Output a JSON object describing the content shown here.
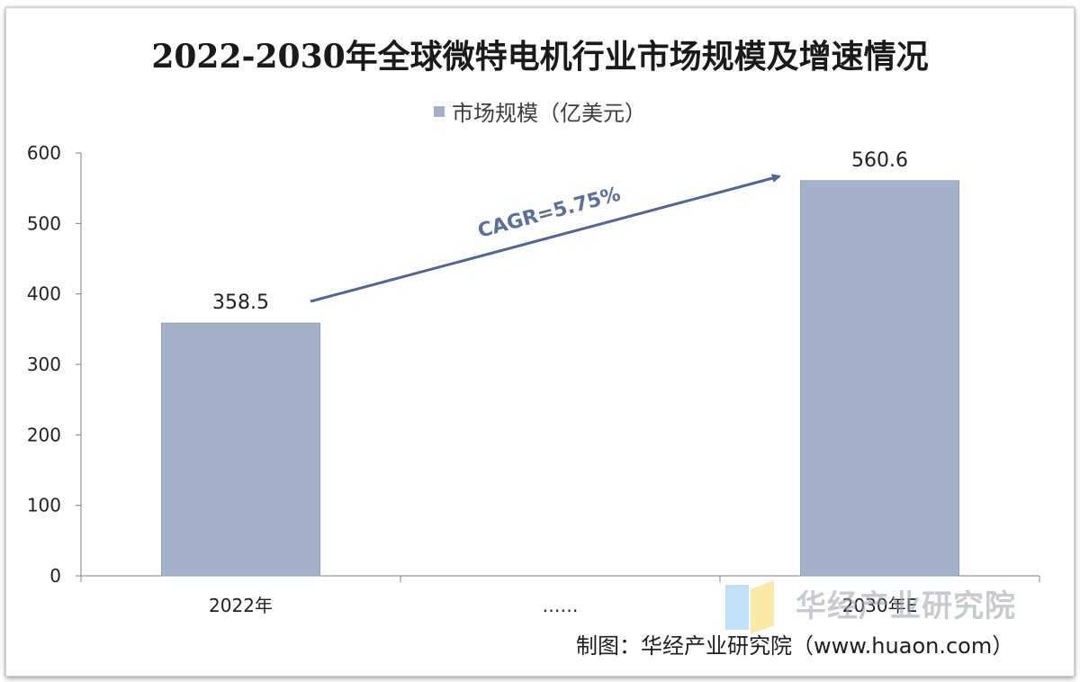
{
  "chart_data": {
    "type": "bar",
    "title": "2022-2030年全球微特电机行业市场规模及增速情况",
    "categories": [
      "2022年",
      "……",
      "2030年E"
    ],
    "series": [
      {
        "name": "市场规模（亿美元）",
        "values": [
          358.5,
          null,
          560.6
        ]
      }
    ],
    "data_labels": [
      "358.5",
      "",
      "560.6"
    ],
    "ylim": [
      0,
      600
    ],
    "yticks": [
      0,
      100,
      200,
      300,
      400,
      500,
      600
    ],
    "grid": false,
    "legend_position": "top",
    "annotation": "CAGR=5.75%",
    "xlabel": "",
    "ylabel": ""
  },
  "colors": {
    "bar": "#a3b1cb",
    "bar_edge": "#8f9fbd",
    "arrow": "#4f6594",
    "axis": "#7f7f7f"
  },
  "source": "制图：华经产业研究院（www.huaon.com）",
  "watermark": "华经产业研究院"
}
